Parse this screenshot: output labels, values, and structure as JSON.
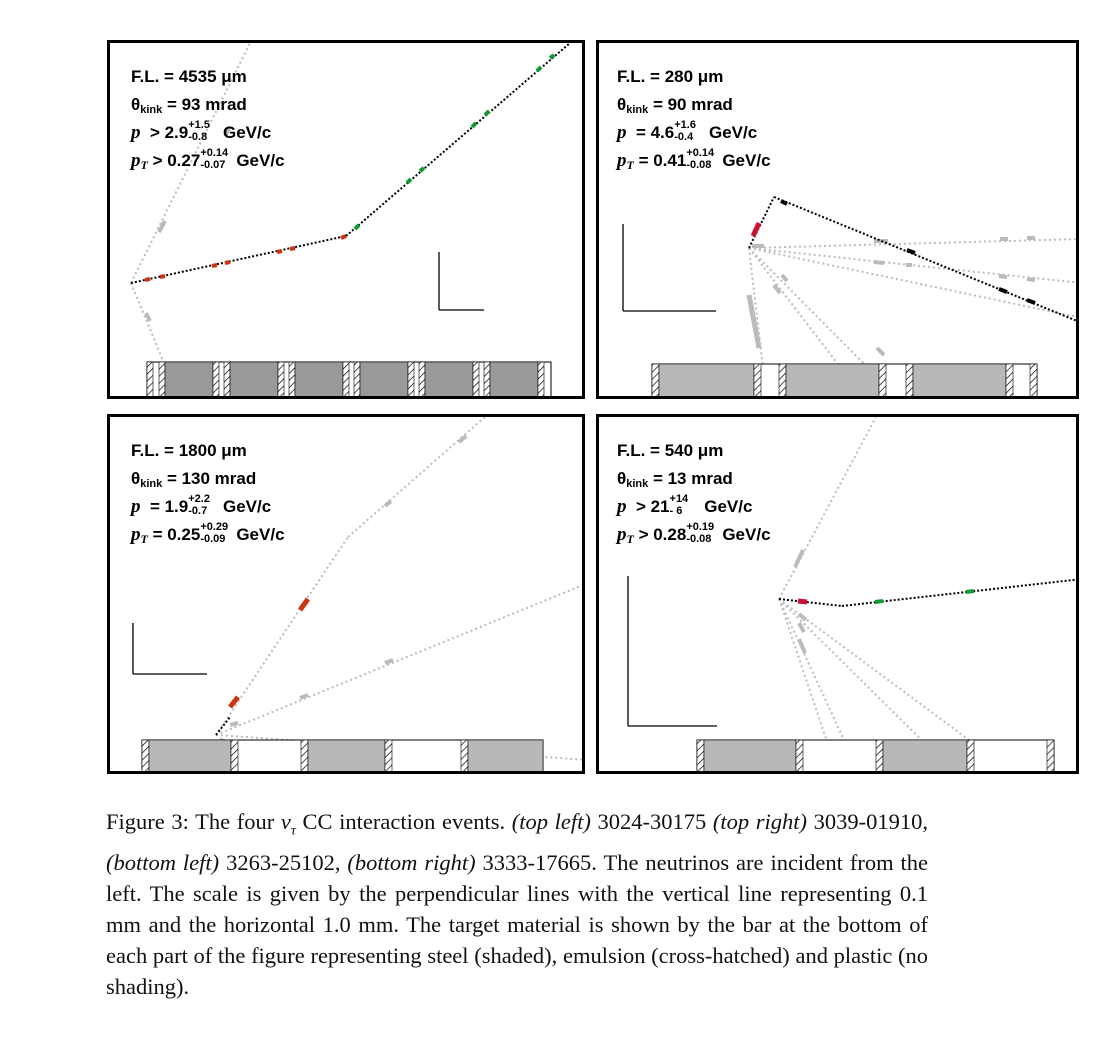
{
  "panels": {
    "top_left": {
      "fl": "F.L. = 4535 μm",
      "theta_pre": "θ",
      "theta_sub": "kink",
      "theta_val": " = 93 mrad",
      "p_sym": "p",
      "p_rel": "> 2.9",
      "p_up": "+1.5",
      "p_dn": "-0.8",
      "p_unit": "GeV/c",
      "pt_sym": "p",
      "pt_sub": "T",
      "pt_rel": "> 0.27",
      "pt_up": "+0.14",
      "pt_dn": "-0.07",
      "pt_unit": "GeV/c"
    },
    "top_right": {
      "fl": "F.L. = 280 μm",
      "theta_pre": "θ",
      "theta_sub": "kink",
      "theta_val": " = 90 mrad",
      "p_sym": "p",
      "p_rel": "= 4.6",
      "p_up": "+1.6",
      "p_dn": "-0.4",
      "p_unit": "GeV/c",
      "pt_sym": "p",
      "pt_sub": "T",
      "pt_rel": "= 0.41",
      "pt_up": "+0.14",
      "pt_dn": "-0.08",
      "pt_unit": "GeV/c"
    },
    "bottom_left": {
      "fl": "F.L. = 1800 μm",
      "theta_pre": "θ",
      "theta_sub": "kink",
      "theta_val": " = 130 mrad",
      "p_sym": "p",
      "p_rel": "= 1.9",
      "p_up": "+2.2",
      "p_dn": "-0.7",
      "p_unit": "GeV/c",
      "pt_sym": "p",
      "pt_sub": "T",
      "pt_rel": "= 0.25",
      "pt_up": "+0.29",
      "pt_dn": "-0.09",
      "pt_unit": "GeV/c"
    },
    "bottom_right": {
      "fl": "F.L. = 540 μm",
      "theta_pre": "θ",
      "theta_sub": "kink",
      "theta_val": " = 13 mrad",
      "p_sym": "p",
      "p_rel": "> 21",
      "p_up": "+14",
      "p_dn": "- 6",
      "p_unit": "GeV/c",
      "pt_sym": "p",
      "pt_sub": "T",
      "pt_rel": "> 0.28",
      "pt_up": "+0.19",
      "pt_dn": "-0.08",
      "pt_unit": "GeV/c"
    }
  },
  "colors": {
    "tau_track": "#cc3311",
    "daughter_track": "#119933",
    "other_track": "#bbbbbb",
    "black_track": "#000000",
    "steel_shade": "#999999",
    "steel_shade_light": "#b8b8b8"
  },
  "caption": {
    "lead": "Figure 3: The four ",
    "nu": "ν",
    "tau": "τ",
    "p1": " CC interaction events. ",
    "tl": "(top left)",
    "tl_id": " 3024-30175 ",
    "tr": "(top right)",
    "tr_id": " 3039-01910, ",
    "bl": "(bottom left)",
    "bl_id": " 3263-25102, ",
    "br": "(bottom right)",
    "br_id": " 3333-17665.",
    "rest": " The neutrinos are incident from the left. The scale is given by the perpendicular lines with the vertical line representing 0.1 mm and the horizontal 1.0 mm. The target material is shown by the bar at the bottom of each part of the figure representing steel (shaded), emulsion (cross-hatched) and plastic (no shading)."
  }
}
